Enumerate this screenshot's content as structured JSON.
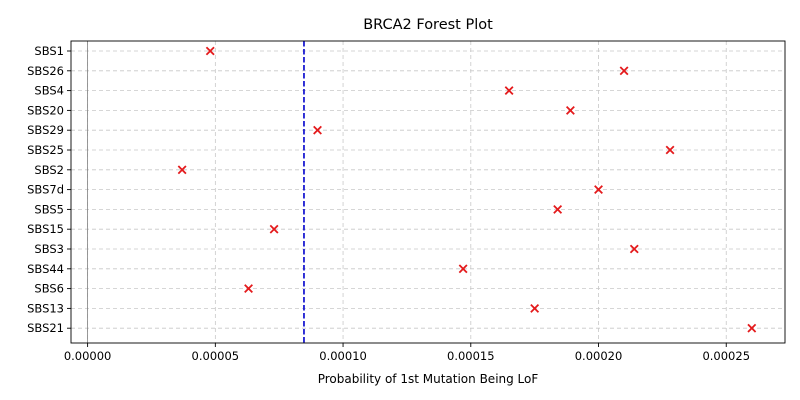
{
  "chart_data": {
    "type": "scatter",
    "title": "BRCA2 Forest Plot",
    "xlabel": "Probability of 1st Mutation Being LoF",
    "ylabel": "",
    "xlim": [
      -6.5e-06,
      0.000273
    ],
    "xticks": [
      0,
      5e-05,
      0.0001,
      0.00015,
      0.0002,
      0.00025
    ],
    "xtick_labels": [
      "0.00000",
      "0.00005",
      "0.00010",
      "0.00015",
      "0.00020",
      "0.00025"
    ],
    "categories": [
      "SBS1",
      "SBS26",
      "SBS4",
      "SBS20",
      "SBS29",
      "SBS25",
      "SBS2",
      "SBS7d",
      "SBS5",
      "SBS15",
      "SBS3",
      "SBS44",
      "SBS6",
      "SBS13",
      "SBS21"
    ],
    "values": [
      4.8e-05,
      0.00021,
      0.000165,
      0.000189,
      9e-05,
      0.000228,
      3.7e-05,
      0.0002,
      0.000184,
      7.3e-05,
      0.000214,
      0.000147,
      6.3e-05,
      0.000175,
      0.00026
    ],
    "reference_lines": [
      {
        "x": 0,
        "style": "solid",
        "color": "#808080"
      },
      {
        "x": 8.47e-05,
        "style": "dashed",
        "color": "#0000cc"
      }
    ],
    "marker": "x",
    "marker_color": "#e41a1c",
    "grid": true
  }
}
